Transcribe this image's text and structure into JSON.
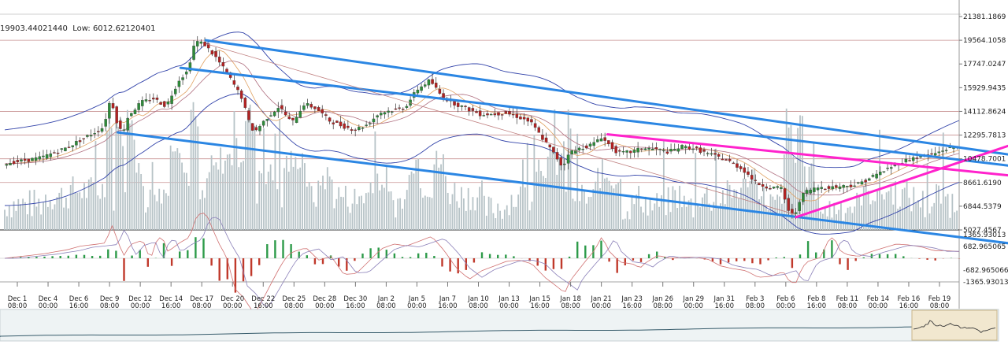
{
  "stats": {
    "high_label": "19903.44021440",
    "low_label": "Low: 6012.62120401"
  },
  "chart_data": {
    "type": "candlestick",
    "price_axis_labels": [
      "21381.1869",
      "19564.1058",
      "17747.0247",
      "15929.9435",
      "14112.8624",
      "12295.7813",
      "10478.7001",
      "8661.6190",
      "6844.5379",
      "5027.4567"
    ],
    "price_ylim": [
      5027.4567,
      21381.1869
    ],
    "macd_axis_labels": [
      "1365.93013",
      "682.965065",
      "-682.965066",
      "-1365.93013"
    ],
    "macd_ylim": [
      -1365.93013,
      1365.93013
    ],
    "x_tick_labels": [
      {
        "date": "Dec 1",
        "time": "08:00"
      },
      {
        "date": "Dec 4",
        "time": "00:00"
      },
      {
        "date": "Dec 6",
        "time": "16:00"
      },
      {
        "date": "Dec 9",
        "time": "08:00"
      },
      {
        "date": "Dec 12",
        "time": "00:00"
      },
      {
        "date": "Dec 14",
        "time": "16:00"
      },
      {
        "date": "Dec 17",
        "time": "08:00"
      },
      {
        "date": "Dec 20",
        "time": "00:00"
      },
      {
        "date": "Dec 22",
        "time": "16:00"
      },
      {
        "date": "Dec 25",
        "time": "08:00"
      },
      {
        "date": "Dec 28",
        "time": "00:00"
      },
      {
        "date": "Dec 30",
        "time": "16:00"
      },
      {
        "date": "Jan 2",
        "time": "08:00"
      },
      {
        "date": "Jan 5",
        "time": "00:00"
      },
      {
        "date": "Jan 7",
        "time": "16:00"
      },
      {
        "date": "Jan 10",
        "time": "08:00"
      },
      {
        "date": "Jan 13",
        "time": "00:00"
      },
      {
        "date": "Jan 15",
        "time": "16:00"
      },
      {
        "date": "Jan 18",
        "time": "08:00"
      },
      {
        "date": "Jan 21",
        "time": "00:00"
      },
      {
        "date": "Jan 23",
        "time": "16:00"
      },
      {
        "date": "Jan 26",
        "time": "08:00"
      },
      {
        "date": "Jan 29",
        "time": "00:00"
      },
      {
        "date": "Jan 31",
        "time": "16:00"
      },
      {
        "date": "Feb 3",
        "time": "08:00"
      },
      {
        "date": "Feb 6",
        "time": "00:00"
      },
      {
        "date": "Feb 8",
        "time": "16:00"
      },
      {
        "date": "Feb 11",
        "time": "08:00"
      },
      {
        "date": "Feb 14",
        "time": "00:00"
      },
      {
        "date": "Feb 16",
        "time": "16:00"
      },
      {
        "date": "Feb 19",
        "time": "08:00"
      }
    ],
    "horizontal_levels": [
      19564.1058,
      14112.8624,
      12295.7813,
      10478.7001,
      8661.619,
      5027.4567
    ],
    "price_path": [
      [
        0,
        10100
      ],
      [
        3,
        10550
      ],
      [
        5,
        11300
      ],
      [
        7,
        12350
      ],
      [
        8,
        12900
      ],
      [
        8.6,
        15200
      ],
      [
        9,
        13500
      ],
      [
        9.5,
        12400
      ],
      [
        10,
        13800
      ],
      [
        11,
        14800
      ],
      [
        12,
        15100
      ],
      [
        13,
        14500
      ],
      [
        14,
        16500
      ],
      [
        14.7,
        17200
      ],
      [
        15.3,
        19500
      ],
      [
        16,
        19300
      ],
      [
        17,
        18200
      ],
      [
        18,
        16800
      ],
      [
        19,
        15200
      ],
      [
        19.6,
        13300
      ],
      [
        20,
        12500
      ],
      [
        21,
        13600
      ],
      [
        22,
        14500
      ],
      [
        23,
        13200
      ],
      [
        24,
        14700
      ],
      [
        25,
        14300
      ],
      [
        26,
        13400
      ],
      [
        27,
        13000
      ],
      [
        28,
        12700
      ],
      [
        29,
        13100
      ],
      [
        30,
        14000
      ],
      [
        31,
        14200
      ],
      [
        32,
        14400
      ],
      [
        33,
        15800
      ],
      [
        34,
        16500
      ],
      [
        35,
        15200
      ],
      [
        36,
        14700
      ],
      [
        37,
        14300
      ],
      [
        38,
        13900
      ],
      [
        39,
        13900
      ],
      [
        40,
        14000
      ],
      [
        41,
        13700
      ],
      [
        42,
        13300
      ],
      [
        43,
        12000
      ],
      [
        44,
        10700
      ],
      [
        44.6,
        9800
      ],
      [
        45,
        10900
      ],
      [
        46,
        11300
      ],
      [
        47,
        11600
      ],
      [
        47.6,
        12200
      ],
      [
        48,
        11800
      ],
      [
        49,
        10900
      ],
      [
        50,
        11000
      ],
      [
        51,
        11300
      ],
      [
        52,
        11200
      ],
      [
        53,
        11000
      ],
      [
        54,
        11400
      ],
      [
        55,
        11300
      ],
      [
        56,
        10900
      ],
      [
        57,
        10600
      ],
      [
        58,
        10200
      ],
      [
        59,
        9600
      ],
      [
        60,
        8600
      ],
      [
        61,
        8300
      ],
      [
        62,
        8200
      ],
      [
        62.5,
        6600
      ],
      [
        63,
        6000
      ],
      [
        63.5,
        7500
      ],
      [
        64,
        8000
      ],
      [
        65,
        8300
      ],
      [
        66,
        8300
      ],
      [
        67,
        8400
      ],
      [
        68,
        8500
      ],
      [
        69,
        9000
      ],
      [
        70,
        9500
      ],
      [
        71,
        10000
      ],
      [
        72,
        10400
      ],
      [
        73,
        10700
      ],
      [
        74,
        10800
      ],
      [
        75,
        11200
      ],
      [
        76,
        11400
      ]
    ],
    "trendlines": [
      {
        "color": "#2b86e3",
        "from": [
          16,
          19564
        ],
        "to": [
          80,
          10800
        ]
      },
      {
        "color": "#2b86e3",
        "from": [
          14,
          17450
        ],
        "to": [
          80,
          9950
        ]
      },
      {
        "color": "#2b86e3",
        "from": [
          9,
          12500
        ],
        "to": [
          80,
          4000
        ]
      },
      {
        "color": "#ff22cc",
        "from": [
          48,
          12350
        ],
        "to": [
          80,
          9200
        ]
      },
      {
        "color": "#ff22cc",
        "from": [
          63,
          6000
        ],
        "to": [
          80,
          11500
        ]
      }
    ]
  }
}
